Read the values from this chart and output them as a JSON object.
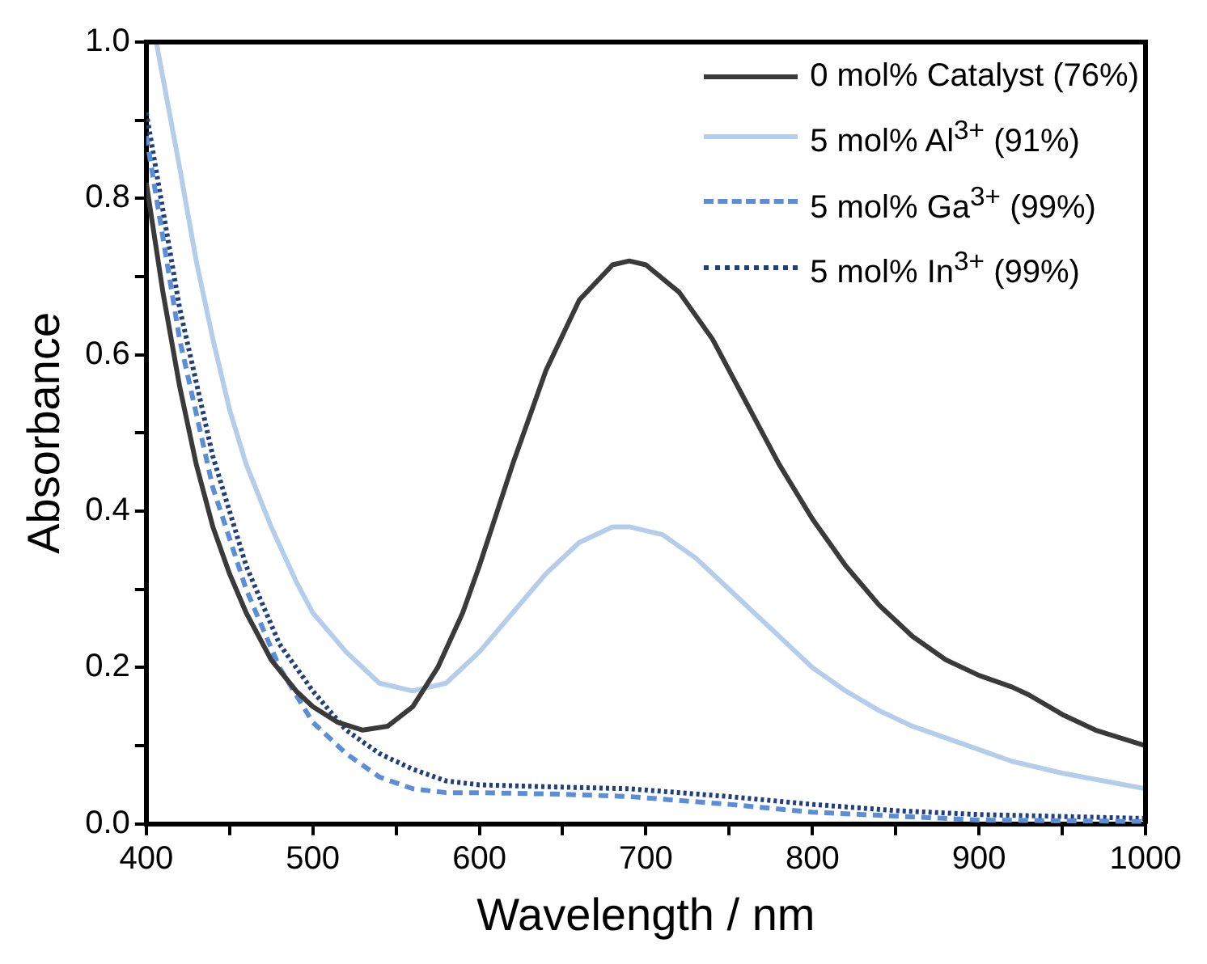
{
  "chart_data": {
    "type": "line",
    "xlabel": "Wavelength / nm",
    "ylabel": "Absorbance",
    "xlim": [
      400,
      1000
    ],
    "xticks": [
      400,
      {
        "value": 450,
        "label": null
      },
      500,
      {
        "value": 550,
        "label": null
      },
      600,
      {
        "value": 650,
        "label": null
      },
      700,
      {
        "value": 750,
        "label": null
      },
      800,
      {
        "value": 850,
        "label": null
      },
      900,
      {
        "value": 950,
        "label": null
      },
      1000
    ],
    "ylim": [
      0,
      1
    ],
    "yticks": [
      {
        "value": 0,
        "label": "0.0"
      },
      {
        "value": 0.1,
        "label": null
      },
      0.2,
      {
        "value": 0.3,
        "label": null
      },
      0.4,
      {
        "value": 0.5,
        "label": null
      },
      0.6,
      {
        "value": 0.7,
        "label": null
      },
      0.8,
      {
        "value": 0.9,
        "label": null
      },
      {
        "value": 1,
        "label": "1.0"
      }
    ],
    "grid": false,
    "legend": "top right",
    "marker": "none",
    "series": [
      {
        "name": "0 mol% Catalyst (76%)",
        "color": "#3a3a3a",
        "line_style": "solid",
        "x": [
          400,
          410,
          420,
          430,
          440,
          450,
          460,
          475,
          490,
          500,
          515,
          530,
          545,
          560,
          575,
          590,
          600,
          620,
          640,
          660,
          680,
          690,
          700,
          720,
          740,
          760,
          780,
          800,
          820,
          840,
          860,
          880,
          900,
          920,
          930,
          950,
          970,
          1000
        ],
        "values": [
          0.82,
          0.68,
          0.56,
          0.46,
          0.38,
          0.32,
          0.27,
          0.21,
          0.17,
          0.15,
          0.13,
          0.12,
          0.125,
          0.15,
          0.2,
          0.27,
          0.33,
          0.46,
          0.58,
          0.67,
          0.715,
          0.72,
          0.715,
          0.68,
          0.62,
          0.54,
          0.46,
          0.39,
          0.33,
          0.28,
          0.24,
          0.21,
          0.19,
          0.175,
          0.165,
          0.14,
          0.12,
          0.1
        ]
      },
      {
        "name": "5 mol% Al$^{3+}$ (91%)",
        "color": "#b4cdeb",
        "line_style": "solid",
        "x": [
          406,
          420,
          430,
          440,
          450,
          460,
          475,
          490,
          500,
          520,
          540,
          560,
          580,
          600,
          620,
          640,
          660,
          680,
          690,
          710,
          730,
          750,
          770,
          790,
          800,
          820,
          840,
          860,
          880,
          900,
          920,
          950,
          1000
        ],
        "values": [
          1.0,
          0.84,
          0.72,
          0.62,
          0.53,
          0.46,
          0.38,
          0.31,
          0.27,
          0.22,
          0.18,
          0.17,
          0.18,
          0.22,
          0.27,
          0.32,
          0.36,
          0.38,
          0.38,
          0.37,
          0.34,
          0.3,
          0.26,
          0.22,
          0.2,
          0.17,
          0.145,
          0.125,
          0.11,
          0.095,
          0.08,
          0.065,
          0.045
        ]
      },
      {
        "name": "5 mol% Ga$^{3+}$ (99%)",
        "color": "#5b8ed6",
        "line_style": "dashed",
        "x": [
          400,
          420,
          440,
          460,
          480,
          500,
          520,
          540,
          560,
          580,
          600,
          650,
          690,
          750,
          800,
          850,
          900,
          1000
        ],
        "values": [
          0.88,
          0.62,
          0.43,
          0.3,
          0.2,
          0.13,
          0.09,
          0.06,
          0.045,
          0.04,
          0.04,
          0.038,
          0.035,
          0.025,
          0.015,
          0.01,
          0.005,
          0.003
        ]
      },
      {
        "name": "5 mol% In$^{3+}$ (99%)",
        "color": "#1f3f7f",
        "line_style": "dotted",
        "x": [
          400,
          420,
          440,
          460,
          480,
          500,
          520,
          540,
          560,
          580,
          600,
          650,
          690,
          750,
          800,
          850,
          900,
          1000
        ],
        "values": [
          0.91,
          0.66,
          0.47,
          0.33,
          0.23,
          0.17,
          0.12,
          0.09,
          0.07,
          0.055,
          0.05,
          0.047,
          0.045,
          0.035,
          0.025,
          0.017,
          0.012,
          0.007
        ]
      }
    ]
  }
}
